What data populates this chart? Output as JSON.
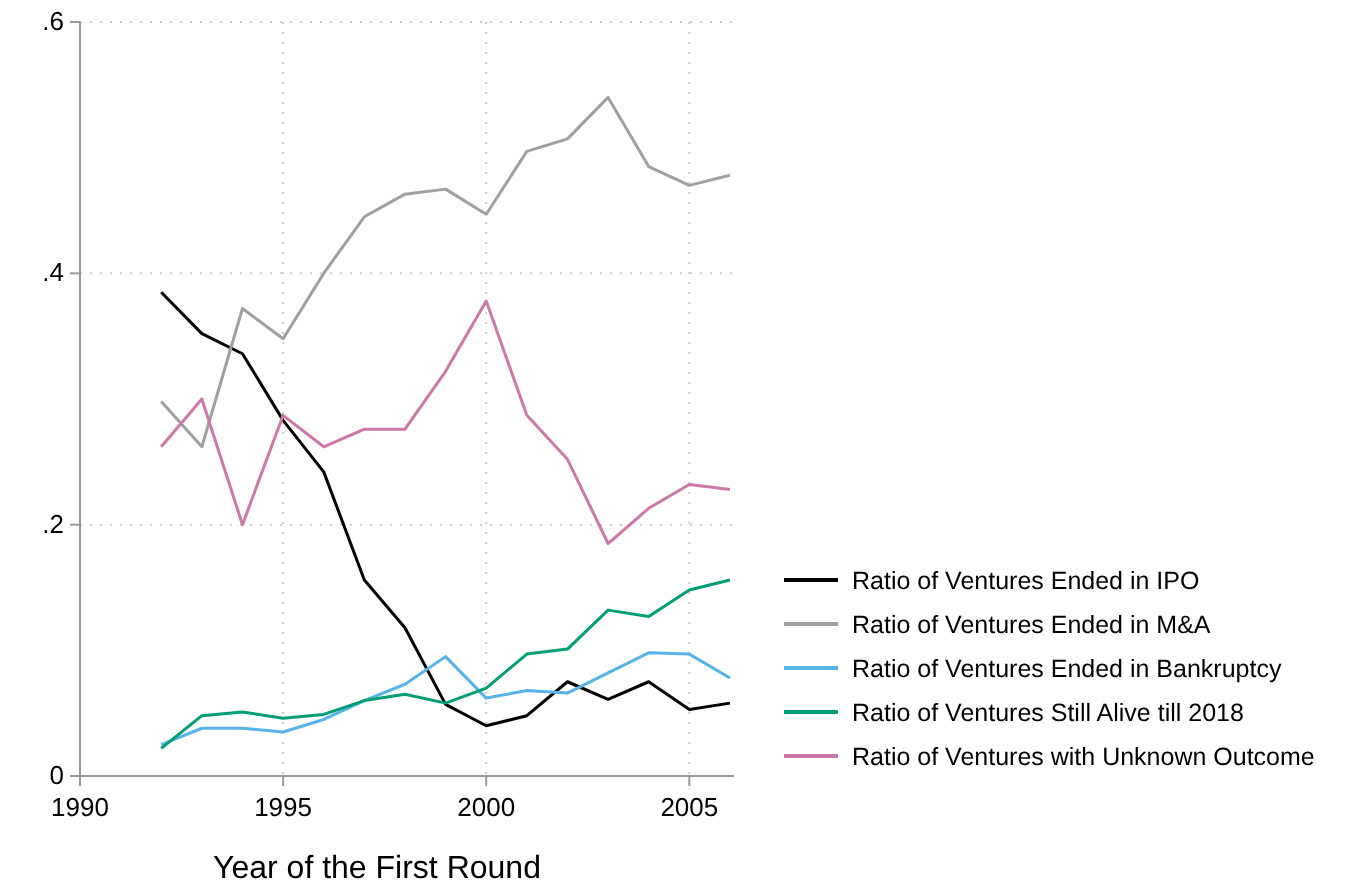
{
  "chart_data": {
    "type": "line",
    "xlabel": "Year of the First Round",
    "x": [
      1992,
      1993,
      1994,
      1995,
      1996,
      1997,
      1998,
      1999,
      2000,
      2001,
      2002,
      2003,
      2004,
      2005,
      2006
    ],
    "xlim": [
      1990,
      2006.1
    ],
    "xticks": [
      1990,
      1995,
      2000,
      2005
    ],
    "ylim": [
      0,
      0.6
    ],
    "yticks": [
      {
        "value": 0,
        "label": "0"
      },
      {
        "value": 0.2,
        "label": ".2"
      },
      {
        "value": 0.4,
        "label": ".4"
      },
      {
        "value": 0.6,
        "label": ".6"
      }
    ],
    "grid": true,
    "legend": "right",
    "marker": "none",
    "line_style": "solid",
    "series": [
      {
        "name": "Ratio of Ventures Ended in IPO",
        "color": "#000000",
        "values": [
          0.385,
          0.352,
          0.336,
          0.283,
          0.242,
          0.156,
          0.118,
          0.057,
          0.04,
          0.048,
          0.075,
          0.061,
          0.075,
          0.053,
          0.058
        ]
      },
      {
        "name": "Ratio of Ventures Ended in M&A",
        "color": "#a0a0a0",
        "values": [
          0.298,
          0.262,
          0.372,
          0.348,
          0.4,
          0.445,
          0.463,
          0.467,
          0.447,
          0.497,
          0.507,
          0.54,
          0.485,
          0.47,
          0.478
        ]
      },
      {
        "name": "Ratio of Ventures Ended in Bankruptcy",
        "color": "#56b4e9",
        "values": [
          0.025,
          0.038,
          0.038,
          0.035,
          0.045,
          0.06,
          0.073,
          0.095,
          0.062,
          0.068,
          0.066,
          0.082,
          0.098,
          0.097,
          0.078
        ]
      },
      {
        "name": "Ratio of Ventures Still Alive till 2018",
        "color": "#009e73",
        "values": [
          0.022,
          0.048,
          0.051,
          0.046,
          0.049,
          0.06,
          0.065,
          0.058,
          0.07,
          0.097,
          0.101,
          0.132,
          0.127,
          0.148,
          0.156
        ]
      },
      {
        "name": "Ratio of Ventures with Unknown Outcome",
        "color": "#cc79a7",
        "values": [
          0.262,
          0.3,
          0.2,
          0.287,
          0.262,
          0.276,
          0.276,
          0.322,
          0.378,
          0.287,
          0.252,
          0.185,
          0.213,
          0.232,
          0.228
        ]
      }
    ]
  }
}
